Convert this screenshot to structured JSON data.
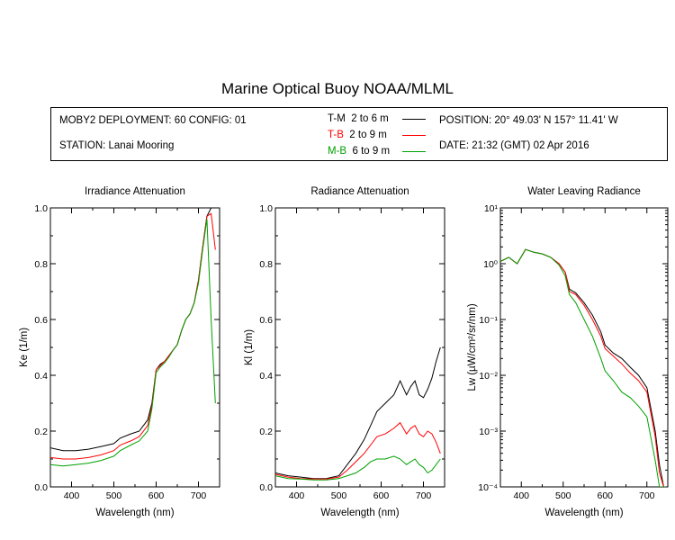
{
  "header": {
    "title": "Marine Optical Buoy NOAA/MLML",
    "deployment": "MOBY2 DEPLOYMENT: 60 CONFIG: 01",
    "station": "STATION: Lanai Mooring",
    "position": "POSITION: 20° 49.03' N   157° 11.41' W",
    "date": "DATE: 21:32 (GMT) 02 Apr 2016"
  },
  "legend": [
    {
      "label": "T-M",
      "range": "2 to 6  m",
      "color": "#000000"
    },
    {
      "label": "T-B",
      "range": "2 to 9  m",
      "color": "#ff0000"
    },
    {
      "label": "M-B",
      "range": "6 to 9  m",
      "color": "#00a000"
    }
  ],
  "chart_data": [
    {
      "type": "line",
      "title": "Irradiance Attenuation",
      "xlabel": "Wavelength (nm)",
      "ylabel": "Ke  (1/m)",
      "xlim": [
        350,
        750
      ],
      "ylim": [
        0,
        1.0
      ],
      "xticks": [
        400,
        500,
        600,
        700
      ],
      "yticks": [
        0.0,
        0.2,
        0.4,
        0.6,
        0.8,
        1.0
      ],
      "yticklabels": [
        "0.0",
        "0.2",
        "0.4",
        "0.6",
        "0.8",
        "1.0"
      ],
      "series": [
        {
          "legend": "T-M",
          "color": "#000000",
          "x": [
            350,
            380,
            410,
            440,
            470,
            500,
            515,
            540,
            560,
            580,
            590,
            600,
            610,
            620,
            630,
            640,
            650,
            660,
            670,
            680,
            690,
            700,
            710,
            720,
            730,
            740
          ],
          "y": [
            0.14,
            0.13,
            0.13,
            0.135,
            0.145,
            0.155,
            0.175,
            0.19,
            0.2,
            0.24,
            0.3,
            0.42,
            0.44,
            0.45,
            0.47,
            0.49,
            0.51,
            0.56,
            0.6,
            0.62,
            0.66,
            0.74,
            0.86,
            0.97,
            1.0,
            1.0
          ]
        },
        {
          "legend": "T-B",
          "color": "#ff0000",
          "x": [
            350,
            380,
            410,
            440,
            470,
            500,
            515,
            540,
            560,
            580,
            590,
            600,
            610,
            620,
            630,
            640,
            650,
            660,
            670,
            680,
            690,
            700,
            710,
            720,
            730,
            740
          ],
          "y": [
            0.105,
            0.1,
            0.1,
            0.105,
            0.115,
            0.13,
            0.15,
            0.165,
            0.18,
            0.22,
            0.29,
            0.42,
            0.435,
            0.45,
            0.47,
            0.49,
            0.51,
            0.56,
            0.6,
            0.62,
            0.66,
            0.74,
            0.86,
            0.97,
            0.98,
            0.85
          ]
        },
        {
          "legend": "M-B",
          "color": "#00a000",
          "x": [
            350,
            380,
            410,
            440,
            470,
            500,
            515,
            540,
            560,
            580,
            590,
            600,
            610,
            620,
            630,
            640,
            650,
            660,
            670,
            680,
            690,
            700,
            710,
            720,
            730,
            740
          ],
          "y": [
            0.08,
            0.075,
            0.08,
            0.085,
            0.095,
            0.11,
            0.13,
            0.15,
            0.165,
            0.2,
            0.28,
            0.41,
            0.43,
            0.445,
            0.465,
            0.49,
            0.51,
            0.56,
            0.6,
            0.62,
            0.66,
            0.73,
            0.85,
            0.96,
            0.6,
            0.3
          ]
        }
      ]
    },
    {
      "type": "line",
      "title": "Radiance Attenuation",
      "xlabel": "Wavelength (nm)",
      "ylabel": "Kl  (1/m)",
      "xlim": [
        350,
        750
      ],
      "ylim": [
        0,
        1.0
      ],
      "xticks": [
        400,
        500,
        600,
        700
      ],
      "yticks": [
        0.0,
        0.2,
        0.4,
        0.6,
        0.8,
        1.0
      ],
      "yticklabels": [
        "0.0",
        "0.2",
        "0.4",
        "0.6",
        "0.8",
        "1.0"
      ],
      "series": [
        {
          "legend": "T-M",
          "color": "#000000",
          "x": [
            350,
            380,
            410,
            440,
            470,
            500,
            520,
            540,
            560,
            575,
            590,
            610,
            630,
            645,
            660,
            670,
            680,
            690,
            700,
            710,
            720,
            730,
            740
          ],
          "y": [
            0.05,
            0.04,
            0.035,
            0.03,
            0.03,
            0.04,
            0.08,
            0.12,
            0.17,
            0.22,
            0.27,
            0.3,
            0.33,
            0.38,
            0.33,
            0.36,
            0.38,
            0.33,
            0.32,
            0.35,
            0.39,
            0.45,
            0.5
          ]
        },
        {
          "legend": "T-B",
          "color": "#ff0000",
          "x": [
            350,
            380,
            410,
            440,
            470,
            500,
            520,
            540,
            560,
            575,
            590,
            610,
            630,
            645,
            660,
            670,
            680,
            690,
            700,
            710,
            720,
            730,
            740
          ],
          "y": [
            0.045,
            0.035,
            0.03,
            0.028,
            0.028,
            0.035,
            0.06,
            0.09,
            0.12,
            0.15,
            0.18,
            0.19,
            0.21,
            0.23,
            0.19,
            0.21,
            0.22,
            0.19,
            0.18,
            0.2,
            0.19,
            0.16,
            0.12
          ]
        },
        {
          "legend": "M-B",
          "color": "#00a000",
          "x": [
            350,
            380,
            410,
            440,
            470,
            500,
            520,
            540,
            560,
            575,
            590,
            610,
            630,
            645,
            660,
            670,
            680,
            690,
            700,
            710,
            720,
            730,
            740
          ],
          "y": [
            0.04,
            0.03,
            0.028,
            0.025,
            0.025,
            0.03,
            0.04,
            0.05,
            0.07,
            0.09,
            0.1,
            0.1,
            0.11,
            0.1,
            0.08,
            0.09,
            0.1,
            0.08,
            0.07,
            0.05,
            0.06,
            0.08,
            0.1
          ]
        }
      ]
    },
    {
      "type": "line",
      "title": "Water Leaving Radiance",
      "xlabel": "Wavelength (nm)",
      "ylabel": "Lw  (µW/cm²/sr/nm)",
      "yscale": "log",
      "xlim": [
        350,
        750
      ],
      "ylim": [
        0.0001,
        10
      ],
      "xticks": [
        400,
        500,
        600,
        700
      ],
      "yticks": [
        0.0001,
        0.001,
        0.01,
        0.1,
        1,
        10
      ],
      "yticklabels": [
        "10⁻⁴",
        "10⁻³",
        "10⁻²",
        "10⁻¹",
        "10⁰",
        "10¹"
      ],
      "series": [
        {
          "legend": "T-M",
          "color": "#000000",
          "x": [
            350,
            370,
            390,
            410,
            430,
            450,
            470,
            490,
            505,
            515,
            530,
            550,
            570,
            590,
            600,
            620,
            640,
            660,
            680,
            700,
            720,
            730,
            740,
            745
          ],
          "y": [
            1.1,
            1.3,
            1.0,
            1.8,
            1.6,
            1.5,
            1.3,
            1.0,
            0.7,
            0.35,
            0.3,
            0.2,
            0.12,
            0.06,
            0.035,
            0.025,
            0.02,
            0.014,
            0.01,
            0.006,
            0.001,
            0.00025,
            0.0001,
            0.0001
          ]
        },
        {
          "legend": "T-B",
          "color": "#ff0000",
          "x": [
            350,
            370,
            390,
            410,
            430,
            450,
            470,
            490,
            505,
            515,
            530,
            550,
            570,
            590,
            600,
            620,
            640,
            660,
            680,
            700,
            720,
            730,
            740,
            745
          ],
          "y": [
            1.1,
            1.3,
            1.0,
            1.8,
            1.6,
            1.5,
            1.3,
            1.0,
            0.7,
            0.32,
            0.28,
            0.18,
            0.1,
            0.05,
            0.03,
            0.022,
            0.016,
            0.011,
            0.008,
            0.005,
            0.0008,
            0.00018,
            0.0001,
            0.0001
          ]
        },
        {
          "legend": "M-B",
          "color": "#00a000",
          "x": [
            350,
            370,
            390,
            410,
            430,
            450,
            470,
            490,
            505,
            515,
            530,
            550,
            570,
            590,
            600,
            620,
            640,
            660,
            680,
            700,
            720,
            730,
            740,
            745
          ],
          "y": [
            1.1,
            1.3,
            1.0,
            1.8,
            1.6,
            1.5,
            1.3,
            0.95,
            0.6,
            0.28,
            0.2,
            0.1,
            0.05,
            0.02,
            0.012,
            0.008,
            0.005,
            0.004,
            0.0028,
            0.0018,
            0.0003,
            0.0001,
            0.0001,
            0.0001
          ]
        }
      ]
    }
  ]
}
